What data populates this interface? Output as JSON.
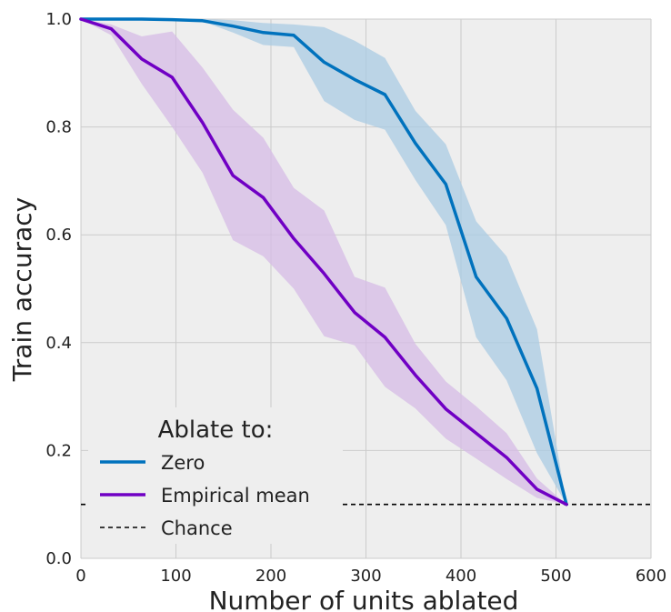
{
  "chart_data": {
    "type": "line",
    "title": "",
    "xlabel": "Number of units ablated",
    "ylabel": "Train accuracy",
    "xlim": [
      0,
      600
    ],
    "ylim": [
      0.0,
      1.0
    ],
    "x_ticks": [
      0,
      100,
      200,
      300,
      400,
      500,
      600
    ],
    "x_tick_labels": [
      "0",
      "100",
      "200",
      "300",
      "400",
      "500",
      "600"
    ],
    "y_ticks": [
      0.0,
      0.2,
      0.4,
      0.6,
      0.8,
      1.0
    ],
    "y_tick_labels": [
      "0.0",
      "0.2",
      "0.4",
      "0.6",
      "0.8",
      "1.0"
    ],
    "grid": true,
    "background": "#eeeeee",
    "legend": {
      "title": "Ablate to:",
      "placement": "lower-left"
    },
    "series": [
      {
        "name": "Zero",
        "color": "#0072bd",
        "band_color": "#a9cbe3",
        "x": [
          0,
          32,
          64,
          96,
          128,
          160,
          192,
          224,
          256,
          288,
          320,
          352,
          384,
          416,
          448,
          480,
          511
        ],
        "values": [
          1.0,
          1.0,
          1.0,
          0.999,
          0.997,
          0.987,
          0.975,
          0.97,
          0.92,
          0.888,
          0.86,
          0.77,
          0.694,
          0.522,
          0.445,
          0.315,
          0.1
        ],
        "lower": [
          1.0,
          1.0,
          0.999,
          0.998,
          0.996,
          0.975,
          0.952,
          0.948,
          0.848,
          0.813,
          0.795,
          0.702,
          0.618,
          0.41,
          0.33,
          0.195,
          0.1
        ],
        "upper": [
          1.0,
          1.0,
          1.0,
          1.0,
          1.0,
          0.998,
          0.993,
          0.99,
          0.985,
          0.96,
          0.928,
          0.83,
          0.768,
          0.625,
          0.56,
          0.425,
          0.1
        ]
      },
      {
        "name": "Empirical mean",
        "color": "#7000c4",
        "band_color": "#d6bbe5",
        "x": [
          0,
          32,
          64,
          96,
          128,
          160,
          192,
          224,
          256,
          288,
          320,
          352,
          384,
          416,
          448,
          480,
          511
        ],
        "values": [
          1.0,
          0.982,
          0.926,
          0.892,
          0.808,
          0.71,
          0.669,
          0.593,
          0.528,
          0.456,
          0.41,
          0.34,
          0.277,
          0.232,
          0.187,
          0.128,
          0.1
        ],
        "lower": [
          1.0,
          0.97,
          0.88,
          0.8,
          0.715,
          0.59,
          0.56,
          0.5,
          0.412,
          0.395,
          0.318,
          0.278,
          0.222,
          0.185,
          0.147,
          0.112,
          0.1
        ],
        "upper": [
          1.0,
          0.99,
          0.968,
          0.977,
          0.91,
          0.832,
          0.78,
          0.687,
          0.645,
          0.522,
          0.502,
          0.398,
          0.328,
          0.282,
          0.232,
          0.148,
          0.1
        ]
      },
      {
        "name": "Chance",
        "color": "#000000",
        "style": "dashed",
        "x": [
          0,
          600
        ],
        "values": [
          0.1,
          0.1
        ]
      }
    ]
  }
}
